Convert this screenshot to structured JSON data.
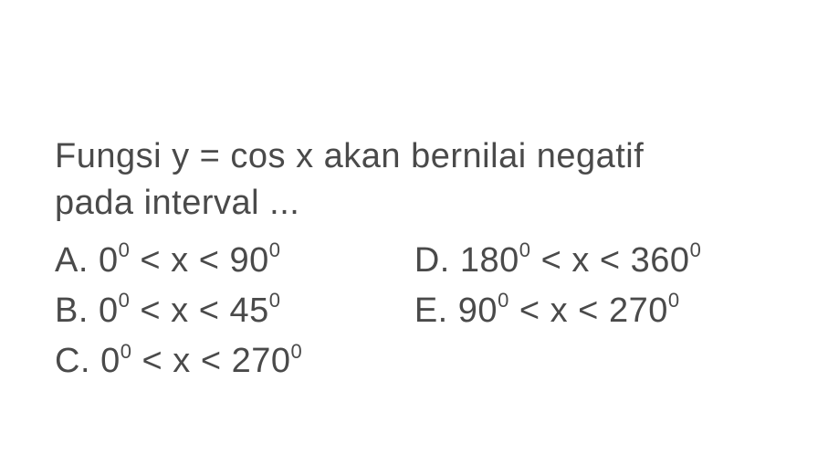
{
  "question": {
    "line1": "Fungsi  y = cos x akan bernilai negatif",
    "line2": "pada interval ..."
  },
  "options": {
    "a": {
      "label": "A.",
      "low": "0",
      "high": "90"
    },
    "b": {
      "label": "B.",
      "low": "0",
      "high": "45"
    },
    "c": {
      "label": "C.",
      "low": "0",
      "high": "270"
    },
    "d": {
      "label": "D.",
      "low": "180",
      "high": "360"
    },
    "e": {
      "label": "E.",
      "low": "90",
      "high": "270"
    }
  },
  "style": {
    "text_color": "#4a4a4a",
    "background_color": "#ffffff",
    "font_size_main": 38,
    "font_size_sup": 22,
    "degree_symbol": "0"
  }
}
